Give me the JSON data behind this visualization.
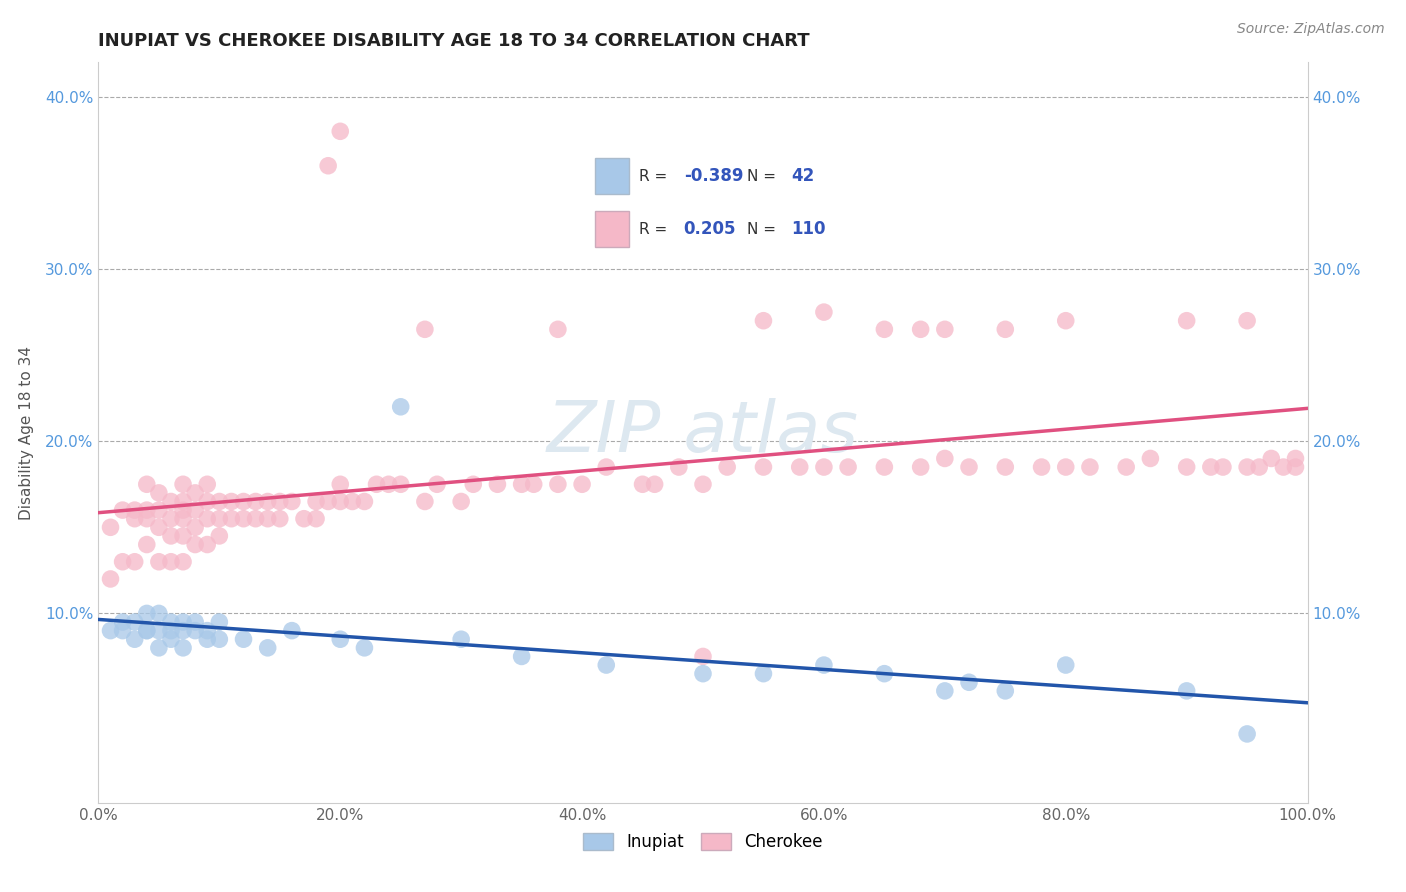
{
  "title": "INUPIAT VS CHEROKEE DISABILITY AGE 18 TO 34 CORRELATION CHART",
  "source": "Source: ZipAtlas.com",
  "ylabel": "Disability Age 18 to 34",
  "xlim": [
    0.0,
    1.0
  ],
  "ylim": [
    -0.01,
    0.42
  ],
  "xtick_labels": [
    "0.0%",
    "20.0%",
    "40.0%",
    "60.0%",
    "80.0%",
    "100.0%"
  ],
  "xtick_vals": [
    0.0,
    0.2,
    0.4,
    0.6,
    0.8,
    1.0
  ],
  "ytick_labels": [
    "10.0%",
    "20.0%",
    "30.0%",
    "40.0%"
  ],
  "ytick_vals": [
    0.1,
    0.2,
    0.3,
    0.4
  ],
  "inupiat_R": "-0.389",
  "inupiat_N": "42",
  "cherokee_R": "0.205",
  "cherokee_N": "110",
  "inupiat_color": "#a8c8e8",
  "cherokee_color": "#f5b8c8",
  "inupiat_line_color": "#2255aa",
  "cherokee_line_color": "#e05080",
  "watermark_color": "#dde8f0",
  "inupiat_x": [
    0.01,
    0.02,
    0.02,
    0.03,
    0.03,
    0.04,
    0.04,
    0.04,
    0.05,
    0.05,
    0.05,
    0.06,
    0.06,
    0.06,
    0.07,
    0.07,
    0.07,
    0.08,
    0.08,
    0.09,
    0.09,
    0.1,
    0.1,
    0.12,
    0.14,
    0.16,
    0.2,
    0.22,
    0.25,
    0.3,
    0.35,
    0.42,
    0.5,
    0.55,
    0.6,
    0.65,
    0.7,
    0.72,
    0.75,
    0.8,
    0.9,
    0.95
  ],
  "inupiat_y": [
    0.09,
    0.09,
    0.095,
    0.085,
    0.095,
    0.09,
    0.09,
    0.1,
    0.08,
    0.09,
    0.1,
    0.085,
    0.09,
    0.095,
    0.08,
    0.09,
    0.095,
    0.09,
    0.095,
    0.085,
    0.09,
    0.085,
    0.095,
    0.085,
    0.08,
    0.09,
    0.085,
    0.08,
    0.22,
    0.085,
    0.075,
    0.07,
    0.065,
    0.065,
    0.07,
    0.065,
    0.055,
    0.06,
    0.055,
    0.07,
    0.055,
    0.03
  ],
  "cherokee_x": [
    0.01,
    0.01,
    0.02,
    0.02,
    0.03,
    0.03,
    0.03,
    0.04,
    0.04,
    0.04,
    0.04,
    0.05,
    0.05,
    0.05,
    0.05,
    0.06,
    0.06,
    0.06,
    0.06,
    0.07,
    0.07,
    0.07,
    0.07,
    0.07,
    0.07,
    0.08,
    0.08,
    0.08,
    0.08,
    0.09,
    0.09,
    0.09,
    0.09,
    0.1,
    0.1,
    0.1,
    0.11,
    0.11,
    0.12,
    0.12,
    0.13,
    0.13,
    0.14,
    0.14,
    0.15,
    0.15,
    0.16,
    0.17,
    0.18,
    0.18,
    0.19,
    0.2,
    0.2,
    0.21,
    0.22,
    0.23,
    0.24,
    0.25,
    0.27,
    0.28,
    0.3,
    0.31,
    0.33,
    0.35,
    0.36,
    0.38,
    0.4,
    0.42,
    0.45,
    0.46,
    0.48,
    0.5,
    0.52,
    0.55,
    0.58,
    0.6,
    0.62,
    0.65,
    0.68,
    0.7,
    0.72,
    0.75,
    0.78,
    0.8,
    0.82,
    0.85,
    0.87,
    0.9,
    0.92,
    0.93,
    0.95,
    0.96,
    0.97,
    0.98,
    0.99,
    0.99,
    0.5,
    0.19,
    0.27,
    0.2,
    0.38,
    0.55,
    0.6,
    0.65,
    0.68,
    0.7,
    0.75,
    0.8,
    0.9,
    0.95
  ],
  "cherokee_y": [
    0.12,
    0.15,
    0.13,
    0.16,
    0.13,
    0.155,
    0.16,
    0.14,
    0.155,
    0.16,
    0.175,
    0.13,
    0.15,
    0.16,
    0.17,
    0.13,
    0.145,
    0.155,
    0.165,
    0.13,
    0.145,
    0.155,
    0.16,
    0.165,
    0.175,
    0.14,
    0.15,
    0.16,
    0.17,
    0.14,
    0.155,
    0.165,
    0.175,
    0.145,
    0.155,
    0.165,
    0.155,
    0.165,
    0.155,
    0.165,
    0.155,
    0.165,
    0.155,
    0.165,
    0.155,
    0.165,
    0.165,
    0.155,
    0.155,
    0.165,
    0.165,
    0.165,
    0.175,
    0.165,
    0.165,
    0.175,
    0.175,
    0.175,
    0.165,
    0.175,
    0.165,
    0.175,
    0.175,
    0.175,
    0.175,
    0.175,
    0.175,
    0.185,
    0.175,
    0.175,
    0.185,
    0.175,
    0.185,
    0.185,
    0.185,
    0.185,
    0.185,
    0.185,
    0.185,
    0.19,
    0.185,
    0.185,
    0.185,
    0.185,
    0.185,
    0.185,
    0.19,
    0.185,
    0.185,
    0.185,
    0.185,
    0.185,
    0.19,
    0.185,
    0.185,
    0.19,
    0.075,
    0.36,
    0.265,
    0.38,
    0.265,
    0.27,
    0.275,
    0.265,
    0.265,
    0.265,
    0.265,
    0.27,
    0.27,
    0.27
  ]
}
